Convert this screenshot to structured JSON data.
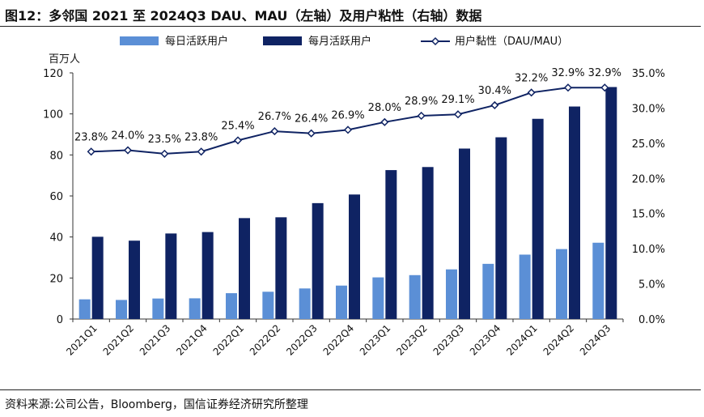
{
  "figure_title": "图12：多邻国 2021 至 2024Q3 DAU、MAU（左轴）及用户粘性（右轴）数据",
  "source": "资料来源:公司公告，Bloomberg，国信证券经济研究所整理",
  "chart_data": {
    "type": "bar",
    "categories": [
      "2021Q1",
      "2021Q2",
      "2021Q3",
      "2021Q4",
      "2022Q1",
      "2022Q2",
      "2022Q3",
      "2022Q4",
      "2023Q1",
      "2023Q2",
      "2023Q3",
      "2023Q4",
      "2024Q1",
      "2024Q2",
      "2024Q3"
    ],
    "y_left_unit": "百万人",
    "ylim_left": [
      0,
      120
    ],
    "yticks_left": [
      "0",
      "20",
      "40",
      "60",
      "80",
      "100",
      "120"
    ],
    "ylim_right": [
      0,
      35
    ],
    "yticks_right": [
      "0.0%",
      "5.0%",
      "10.0%",
      "15.0%",
      "20.0%",
      "25.0%",
      "30.0%",
      "35.0%"
    ],
    "series": [
      {
        "name": "每日活跃用户",
        "type": "bar",
        "axis": "left",
        "color": "#5b8fd6",
        "values": [
          9.6,
          9.3,
          10.0,
          10.1,
          12.6,
          13.3,
          14.9,
          16.3,
          20.3,
          21.4,
          24.2,
          26.9,
          31.4,
          34.1,
          37.2
        ]
      },
      {
        "name": "每月活跃用户",
        "type": "bar",
        "axis": "left",
        "color": "#0f2363",
        "values": [
          40.1,
          38.2,
          41.7,
          42.4,
          49.2,
          49.6,
          56.5,
          60.7,
          72.6,
          74.1,
          83.1,
          88.6,
          97.6,
          103.6,
          113.1
        ]
      },
      {
        "name": "用户黏性（DAU/MAU）",
        "type": "line",
        "axis": "right",
        "color": "#0f2363",
        "values": [
          23.8,
          24.0,
          23.5,
          23.8,
          25.4,
          26.7,
          26.4,
          26.9,
          28.0,
          28.9,
          29.1,
          30.4,
          32.2,
          32.9,
          32.9
        ],
        "labels": [
          "23.8%",
          "24.0%",
          "23.5%",
          "23.8%",
          "25.4%",
          "26.7%",
          "26.4%",
          "26.9%",
          "28.0%",
          "28.9%",
          "29.1%",
          "30.4%",
          "32.2%",
          "32.9%",
          "32.9%"
        ]
      }
    ],
    "legend_position": "top",
    "grid": false
  }
}
